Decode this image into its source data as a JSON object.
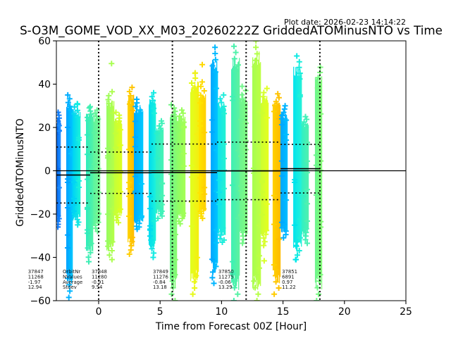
{
  "chart_data": {
    "type": "scatter",
    "title": "S-O3M_GOME_VOD_XX_M03_20260222Z GriddedATOMinusNTO vs Time",
    "subtitle": "Plot date: 2026-02-23 14:14:22",
    "xlabel": "Time from Forecast 00Z [Hour]",
    "ylabel": "GriddedATOMinusNTO",
    "xlim": [
      -3.44,
      25
    ],
    "ylim": [
      -60,
      60
    ],
    "xticks": [
      0,
      5,
      10,
      15,
      20,
      25
    ],
    "xtick_labels": [
      "0",
      "5",
      "10",
      "15",
      "20",
      "25"
    ],
    "yticks": [
      -60,
      -40,
      -20,
      0,
      20,
      40,
      60
    ],
    "ytick_labels": [
      "−60",
      "−40",
      "−20",
      "0",
      "20",
      "40",
      "60"
    ],
    "grid": false,
    "legend": "none",
    "forecast_time_lines": [
      0,
      6,
      12,
      18
    ],
    "reference_line": 0,
    "stats_labels": [
      "OrbitNr",
      "NValues",
      "Average",
      "Stdev"
    ],
    "orbits": [
      {
        "orbit_nr": "37847",
        "n_values": "11268",
        "average": "-1.97",
        "stdev": "12.94",
        "mean": -1.97,
        "std": 12.94,
        "t_start": -5.86,
        "t_end": -0.69
      },
      {
        "orbit_nr": "37848",
        "n_values": "11280",
        "average": "-0.91",
        "stdev": "9.54",
        "mean": -0.91,
        "std": 9.54,
        "t_start": -0.69,
        "t_end": 4.3
      },
      {
        "orbit_nr": "37849",
        "n_values": "11276",
        "average": "-0.84",
        "stdev": "13.18",
        "mean": -0.84,
        "std": 13.18,
        "t_start": 4.3,
        "t_end": 9.63
      },
      {
        "orbit_nr": "37850",
        "n_values": "11275",
        "average": "-0.06",
        "stdev": "13.29",
        "mean": -0.06,
        "std": 13.29,
        "t_start": 9.63,
        "t_end": 14.8
      },
      {
        "orbit_nr": "37851",
        "n_values": "6891",
        "average": "0.97",
        "stdev": "11.22",
        "mean": 0.97,
        "std": 11.22,
        "t_start": 14.8,
        "t_end": 18.0
      }
    ],
    "point_columns": [
      {
        "t0": -3.44,
        "t1": -3.1,
        "ymin": -26,
        "ymax": 27,
        "colors": [
          "#0b6cf0",
          "#1a8cff"
        ]
      },
      {
        "t0": -2.64,
        "t1": -2.12,
        "ymin": -58.5,
        "ymax": 35,
        "colors": [
          "#00a4ff",
          "#00c4ff"
        ]
      },
      {
        "t0": -2.12,
        "t1": -1.49,
        "ymin": -25,
        "ymax": 31,
        "colors": [
          "#00d4f4",
          "#18f0dc"
        ]
      },
      {
        "t0": -1.03,
        "t1": -0.46,
        "ymin": -42,
        "ymax": 29,
        "colors": [
          "#30ecbc",
          "#50f2a8"
        ]
      },
      {
        "t0": -0.46,
        "t1": 0.11,
        "ymin": -28,
        "ymax": 28,
        "colors": [
          "#5cf4a0",
          "#78f890"
        ]
      },
      {
        "t0": 0.63,
        "t1": 1.26,
        "ymin": -41,
        "ymax": 36.5,
        "colors": [
          "#98fc60",
          "#b4ff48"
        ]
      },
      {
        "t0": 1.26,
        "t1": 1.89,
        "ymin": -24,
        "ymax": 27,
        "colors": [
          "#c4ff38",
          "#dcff22"
        ]
      },
      {
        "t0": 2.35,
        "t1": 2.87,
        "ymin": -38.5,
        "ymax": 38.5,
        "colors": [
          "#ffd400",
          "#ffbc00"
        ]
      },
      {
        "t0": 2.87,
        "t1": 3.61,
        "ymin": -27,
        "ymax": 33,
        "colors": [
          "#00acff",
          "#00c8ff"
        ]
      },
      {
        "t0": 4.07,
        "t1": 4.64,
        "ymin": -40,
        "ymax": 36,
        "colors": [
          "#00dcf0",
          "#1cf0dc"
        ]
      },
      {
        "t0": 4.64,
        "t1": 5.28,
        "ymin": -22,
        "ymax": 23,
        "colors": [
          "#2cf0c8",
          "#48f2b4"
        ]
      },
      {
        "t0": 5.79,
        "t1": 6.36,
        "ymin": -60,
        "ymax": 30.5,
        "colors": [
          "#6cf688",
          "#88fa70"
        ]
      },
      {
        "t0": 6.36,
        "t1": 7.05,
        "ymin": -24.5,
        "ymax": 28,
        "colors": [
          "#8cfc68",
          "#a4ff54"
        ]
      },
      {
        "t0": 7.45,
        "t1": 8.14,
        "ymin": -57,
        "ymax": 45,
        "colors": [
          "#e0ff20",
          "#f4f010"
        ]
      },
      {
        "t0": 8.14,
        "t1": 8.72,
        "ymin": -22,
        "ymax": 41,
        "colors": [
          "#ffe400",
          "#ffd000"
        ]
      },
      {
        "t0": 9.12,
        "t1": 9.69,
        "ymin": -52,
        "ymax": 57,
        "colors": [
          "#00a8ff",
          "#00c4ff"
        ]
      },
      {
        "t0": 9.69,
        "t1": 10.32,
        "ymin": -33,
        "ymax": 35,
        "colors": [
          "#10e4ec",
          "#24f0d4"
        ]
      },
      {
        "t0": 10.78,
        "t1": 11.47,
        "ymin": -60,
        "ymax": 57.5,
        "colors": [
          "#40f0b4",
          "#5cf2a0"
        ]
      },
      {
        "t0": 11.47,
        "t1": 12.1,
        "ymin": -33.5,
        "ymax": 39,
        "colors": [
          "#6cf690",
          "#80f880"
        ]
      },
      {
        "t0": 12.5,
        "t1": 13.19,
        "ymin": -60,
        "ymax": 60,
        "colors": [
          "#a8fe50",
          "#bcff44"
        ]
      },
      {
        "t0": 13.19,
        "t1": 13.82,
        "ymin": -34.5,
        "ymax": 38,
        "colors": [
          "#ccff30",
          "#e4ff20"
        ]
      },
      {
        "t0": 14.16,
        "t1": 14.79,
        "ymin": -57,
        "ymax": 35.5,
        "colors": [
          "#ffd000",
          "#ffbc00"
        ]
      },
      {
        "t0": 14.79,
        "t1": 15.37,
        "ymin": -31,
        "ymax": 30,
        "colors": [
          "#00a8ff",
          "#00bcff"
        ]
      },
      {
        "t0": 15.83,
        "t1": 16.51,
        "ymin": -41,
        "ymax": 53,
        "colors": [
          "#00e4ec",
          "#20f0d8"
        ]
      },
      {
        "t0": 16.51,
        "t1": 17.09,
        "ymin": -33.5,
        "ymax": 25,
        "colors": [
          "#30f0c4",
          "#50f0b0"
        ]
      },
      {
        "t0": 17.6,
        "t1": 18.18,
        "ymin": -60,
        "ymax": 47.8,
        "colors": [
          "#6cf68c",
          "#84fa78"
        ]
      }
    ],
    "outliers": [
      {
        "t": 1.05,
        "y": 49.5,
        "color": "#a8ff50"
      },
      {
        "t": -1.72,
        "y": 30.6,
        "color": "#10f0e0"
      },
      {
        "t": -0.69,
        "y": 29.6,
        "color": "#40f0b0"
      },
      {
        "t": 7.86,
        "y": 45.2,
        "color": "#f0f020"
      },
      {
        "t": 8.43,
        "y": 49.0,
        "color": "#ffd800"
      },
      {
        "t": 13.47,
        "y": -41.6,
        "color": "#d8ff28"
      },
      {
        "t": 16.06,
        "y": -41.0,
        "color": "#00e8e8"
      },
      {
        "t": 16.06,
        "y": -34.5,
        "color": "#00e8e8"
      },
      {
        "t": 10.2,
        "y": -32.0,
        "color": "#20f0d8"
      },
      {
        "t": 3.3,
        "y": -26.0,
        "color": "#00c0ff"
      }
    ],
    "line_colors": {
      "mean": "#000000",
      "stdev": "#000000",
      "forecast": "#000000",
      "reference": "#000000"
    }
  }
}
